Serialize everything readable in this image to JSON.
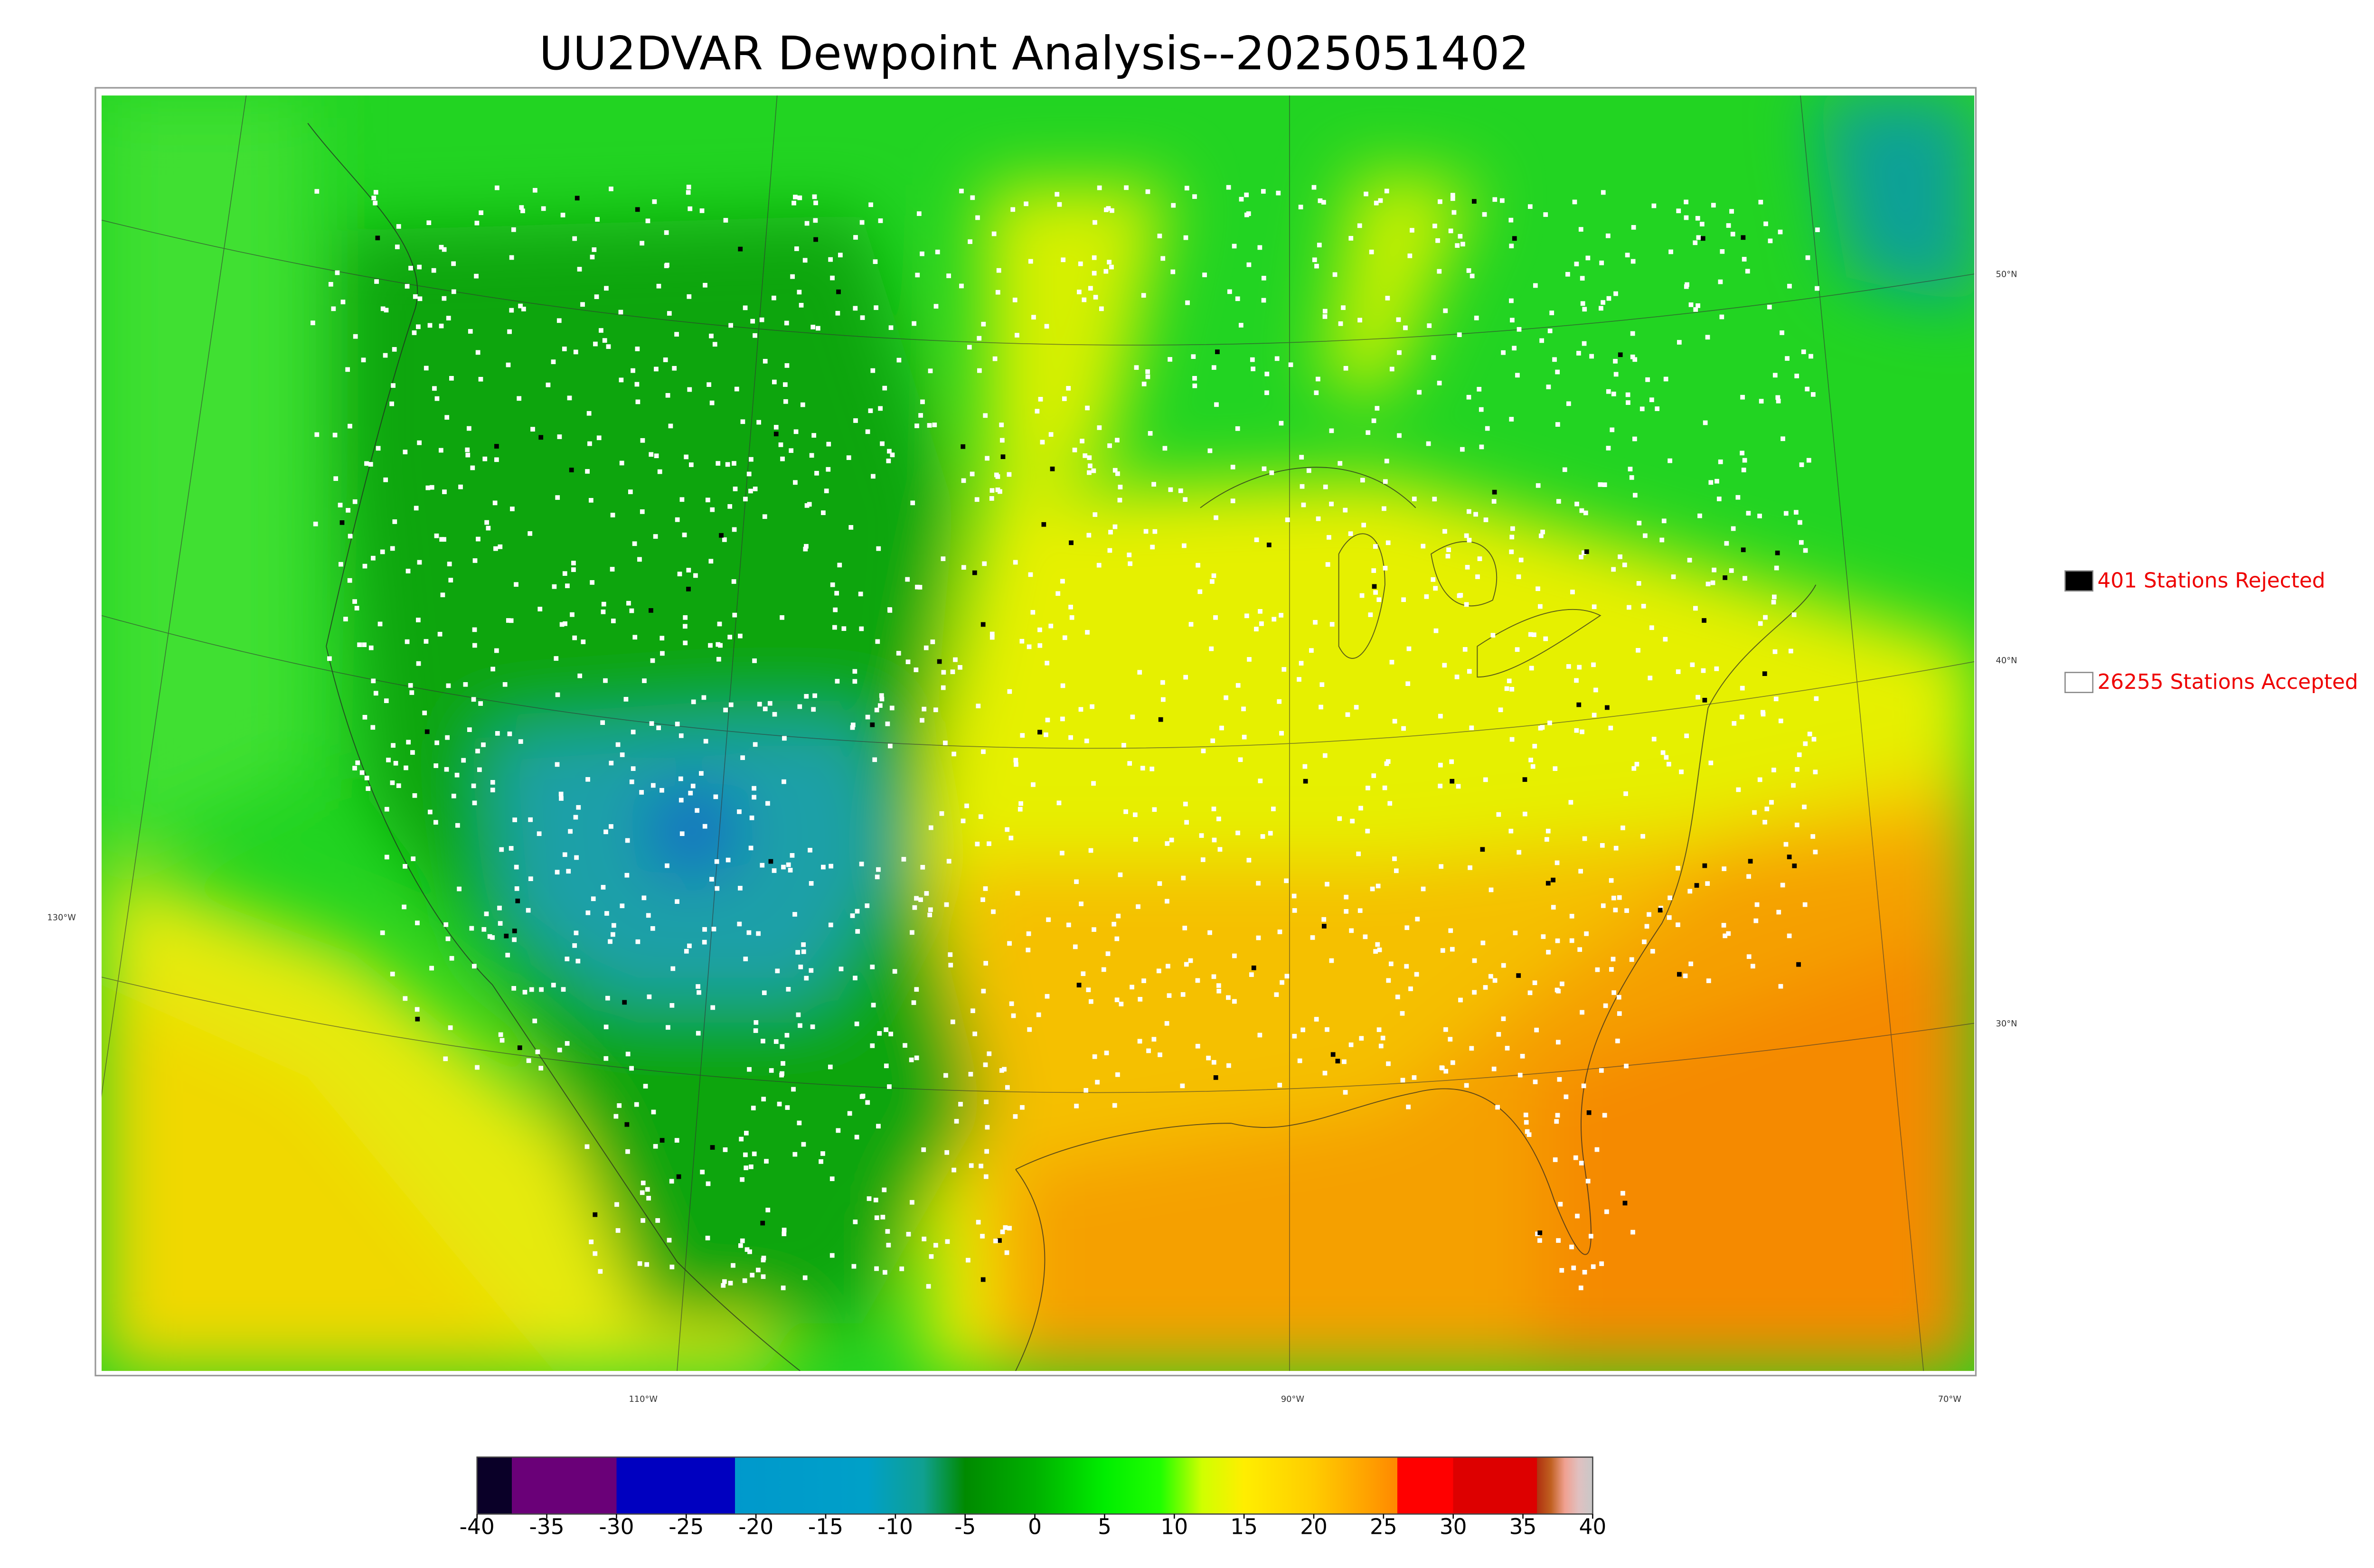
{
  "title": "UU2DVAR Dewpoint Analysis--2025051402",
  "legend": [
    {
      "label": "401 Stations Rejected",
      "color": "#000000"
    },
    {
      "label": "26255 Stations Accepted",
      "color": "#ffffff"
    }
  ],
  "graticule": {
    "lat_labels": [
      "50°N",
      "40°N",
      "30°N"
    ],
    "lon_labels": [
      "130°W",
      "110°W",
      "90°W",
      "70°W"
    ]
  },
  "colorbar": {
    "lim": [
      -40,
      40
    ],
    "ticks": [
      -40,
      -35,
      -30,
      -25,
      -20,
      -15,
      -10,
      -5,
      0,
      5,
      10,
      15,
      20,
      25,
      30,
      35,
      40
    ],
    "stops": [
      {
        "value": -40,
        "color": "#0a0028"
      },
      {
        "value": -37.5,
        "color": "#0a0028"
      },
      {
        "value": -37.5,
        "color": "#6a0078"
      },
      {
        "value": -30,
        "color": "#6a0078"
      },
      {
        "value": -30,
        "color": "#0000c0"
      },
      {
        "value": -21.5,
        "color": "#0000c0"
      },
      {
        "value": -21.5,
        "color": "#0099cc"
      },
      {
        "value": -12,
        "color": "#00a0c8"
      },
      {
        "value": -8,
        "color": "#10a090"
      },
      {
        "value": -5,
        "color": "#008a00"
      },
      {
        "value": 0,
        "color": "#00b000"
      },
      {
        "value": 5,
        "color": "#00ee00"
      },
      {
        "value": 9,
        "color": "#20ff00"
      },
      {
        "value": 12,
        "color": "#d0ff00"
      },
      {
        "value": 15,
        "color": "#ffee00"
      },
      {
        "value": 20,
        "color": "#ffcc00"
      },
      {
        "value": 24,
        "color": "#ffa000"
      },
      {
        "value": 26,
        "color": "#ff8800"
      },
      {
        "value": 26,
        "color": "#ff0000"
      },
      {
        "value": 30,
        "color": "#ff0000"
      },
      {
        "value": 30,
        "color": "#dd0000"
      },
      {
        "value": 36,
        "color": "#dd0000"
      },
      {
        "value": 36,
        "color": "#b03010"
      },
      {
        "value": 37,
        "color": "#c06020"
      },
      {
        "value": 38,
        "color": "#f0a090"
      },
      {
        "value": 39,
        "color": "#e0c0c0"
      },
      {
        "value": 40,
        "color": "#c8c8c8"
      }
    ]
  }
}
